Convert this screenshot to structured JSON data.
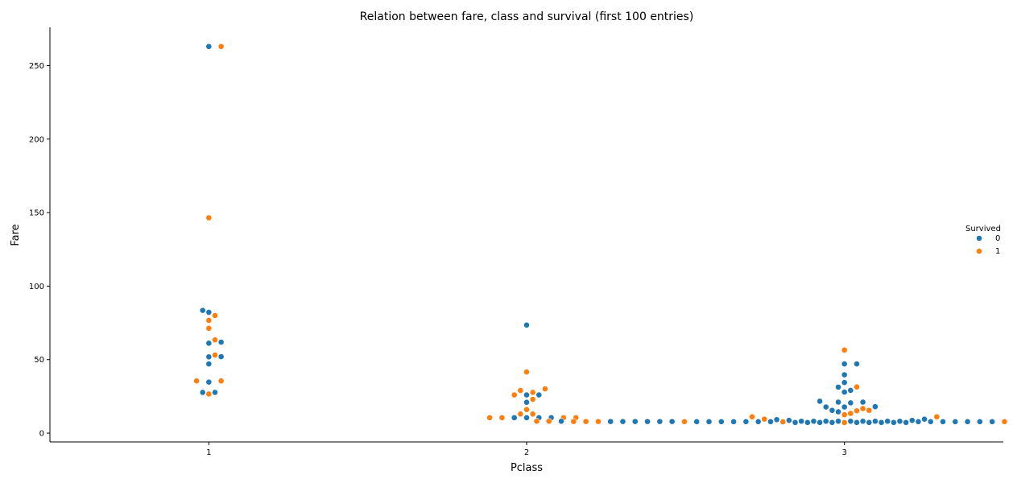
{
  "chart_data": {
    "type": "scatter",
    "style": "swarm",
    "title": "Relation between fare, class and survival (first 100 entries)",
    "xlabel": "Pclass",
    "ylabel": "Fare",
    "categories": [
      "1",
      "2",
      "3"
    ],
    "yticks": [
      0,
      50,
      100,
      150,
      200,
      250
    ],
    "ylim": [
      -6,
      276
    ],
    "grid": false,
    "legend": {
      "title": "Survived",
      "placement": "right",
      "entries": [
        {
          "label": "0",
          "color": "#1f77b4"
        },
        {
          "label": "1",
          "color": "#ff7f0e"
        }
      ]
    },
    "colors": {
      "0": "#1f77b4",
      "1": "#ff7f0e"
    },
    "series": [
      {
        "name": "0",
        "values": {
          "1": [
            263,
            83.5,
            82.2,
            61.9,
            61.2,
            52,
            51.9,
            47.1,
            34.7,
            27.7,
            27.7
          ],
          "2": [
            73.5,
            26,
            26,
            21,
            10.5,
            10.5,
            10.5,
            10.5
          ],
          "3": [
            47.1,
            47.1,
            39.7,
            34.4,
            31.3,
            29.1,
            27.9,
            21.7,
            21.1,
            21.1,
            20.6,
            18,
            17.8,
            17.8,
            15.5,
            14.5,
            9.5,
            9.2,
            8.7,
            8.7,
            8.1,
            8.1,
            8.1,
            8.1,
            8.1,
            8.1,
            8.1,
            8.1,
            8.1,
            8.1,
            8.1,
            7.9,
            7.9,
            7.9,
            7.9,
            7.9,
            7.9,
            7.9,
            7.9,
            7.9,
            7.9,
            7.9,
            7.9,
            7.8,
            7.8,
            7.8,
            7.8,
            7.8,
            7.8,
            7.8,
            7.8,
            7.8,
            7.8,
            7.8,
            7.8,
            7.8,
            7.8,
            7.25,
            7.25,
            7.25,
            7.25,
            7.23,
            7.23,
            7.23,
            7.23,
            7.23
          ]
        }
      },
      {
        "name": "1",
        "values": {
          "1": [
            263,
            146.5,
            80,
            76.7,
            71.3,
            63.4,
            53.1,
            35.5,
            35.5,
            26.6
          ],
          "2": [
            41.6,
            30.1,
            29,
            26,
            27.7,
            23,
            16,
            13,
            13,
            10.5,
            10.5,
            10.5,
            10.5
          ],
          "3": [
            56.5,
            31.4,
            16.7,
            15.5,
            15.2,
            13.4,
            12.5,
            11.1,
            11.1,
            9.5,
            8.1,
            8.1,
            8.1,
            8.1,
            7.9,
            7.9,
            7.9,
            7.9,
            7.9,
            7.9,
            7.8,
            7.8,
            7.7,
            7.2
          ]
        }
      }
    ]
  }
}
